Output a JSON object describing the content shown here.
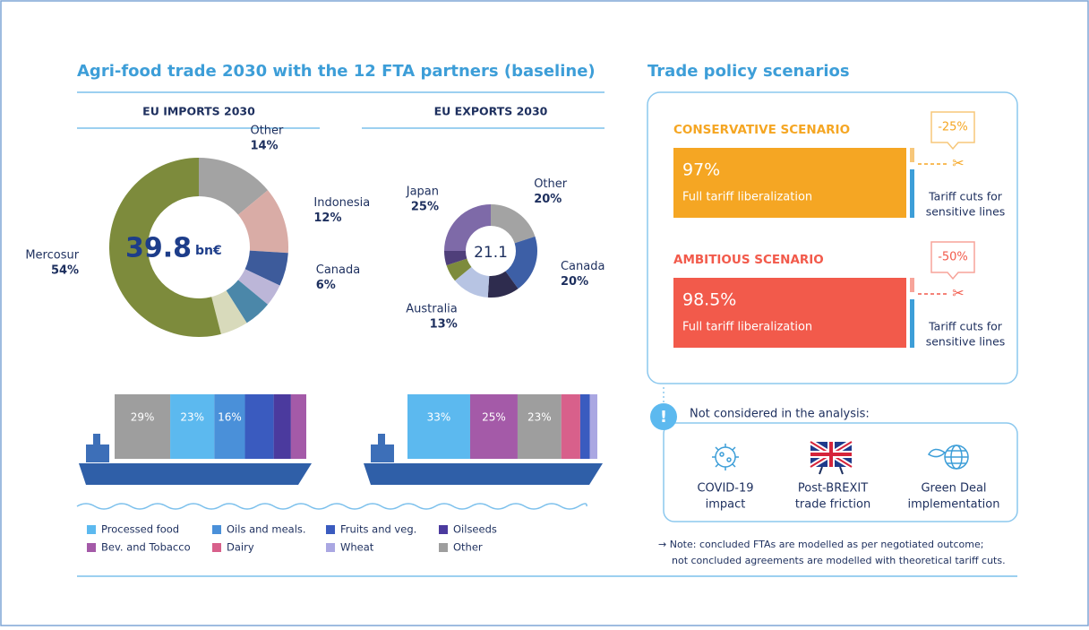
{
  "title": "Agri-food trade 2030 with the 12 FTA partners (baseline)",
  "chart_data": [
    {
      "type": "donut",
      "title": "EU IMPORTS 2030",
      "center_value": "39.8",
      "center_unit": "bn€",
      "categories": [
        "Other",
        "Indonesia",
        "Canada",
        null,
        null,
        null,
        "Mercosur"
      ],
      "values": [
        14,
        12,
        6,
        4,
        5,
        5,
        54
      ],
      "value_labels": [
        "14%",
        "12%",
        "6%",
        null,
        null,
        null,
        "54%"
      ],
      "colors": [
        "#a3a3a3",
        "#d9aca6",
        "#3d5b9b",
        "#bcb6d8",
        "#4b87a9",
        "#d8dabb",
        "#7d8b3c"
      ]
    },
    {
      "type": "donut",
      "title": "EU EXPORTS 2030",
      "center_value": "21.1",
      "categories": [
        "Other",
        "Canada",
        null,
        "Australia",
        null,
        null,
        "Japan"
      ],
      "values": [
        20,
        20,
        11,
        13,
        6,
        5,
        25
      ],
      "value_labels": [
        "20%",
        "20%",
        null,
        "13%",
        null,
        null,
        "25%"
      ],
      "colors": [
        "#a3a3a3",
        "#3d5fa6",
        "#2e2c4e",
        "#b7c4e3",
        "#7d8b3c",
        "#4f3f7a",
        "#7e6aa8"
      ]
    },
    {
      "type": "ship-bar",
      "stacked": true,
      "series": [
        {
          "name": "Processed food",
          "color": "#5cb9ef",
          "values": [
            23,
            33
          ],
          "value_labels": [
            "23%",
            "33%"
          ]
        },
        {
          "name": "Oils and meals.",
          "color": "#4a90d9",
          "values": [
            16,
            null
          ],
          "value_labels": [
            "16%",
            null
          ]
        },
        {
          "name": "Fruits and veg.",
          "color": "#3a5bbf",
          "values": [
            15,
            5
          ],
          "value_labels": [
            null,
            null
          ]
        },
        {
          "name": "Oilseeds",
          "color": "#4b3a9e",
          "values": [
            9,
            null
          ],
          "value_labels": [
            null,
            null
          ]
        },
        {
          "name": "Bev. and Tobacco",
          "color": "#a45aa8",
          "values": [
            8,
            25
          ],
          "value_labels": [
            null,
            "25%"
          ]
        },
        {
          "name": "Dairy",
          "color": "#d8608b",
          "values": [
            null,
            10
          ],
          "value_labels": [
            null,
            null
          ]
        },
        {
          "name": "Wheat",
          "color": "#aaa7e2",
          "values": [
            null,
            4
          ],
          "value_labels": [
            null,
            null
          ]
        },
        {
          "name": "Other",
          "color": "#9e9e9e",
          "values": [
            29,
            23
          ],
          "value_labels": [
            "29%",
            "23%"
          ]
        }
      ]
    }
  ],
  "scenarios": {
    "title": "Trade policy scenarios",
    "items": [
      {
        "name": "CONSERVATIVE SCENARIO",
        "value": "97%",
        "description": "Full tariff liberalization",
        "cut": "-25%",
        "note": [
          "Tariff cuts for",
          "sensitive lines"
        ]
      },
      {
        "name": "AMBITIOUS SCENARIO",
        "value": "98.5%",
        "description": "Full tariff liberalization",
        "cut": "-50%",
        "note": [
          "Tariff cuts for",
          "sensitive lines"
        ]
      }
    ]
  },
  "not_considered": {
    "title": "Not considered in the analysis:",
    "items": [
      [
        "COVID-19",
        "impact"
      ],
      [
        "Post-BREXIT",
        "trade friction"
      ],
      [
        "Green Deal",
        "implementation"
      ]
    ]
  },
  "note": [
    "→ Note: concluded FTAs are modelled as per negotiated outcome;",
    "not concluded agreements are modelled with theoretical tariff cuts."
  ]
}
